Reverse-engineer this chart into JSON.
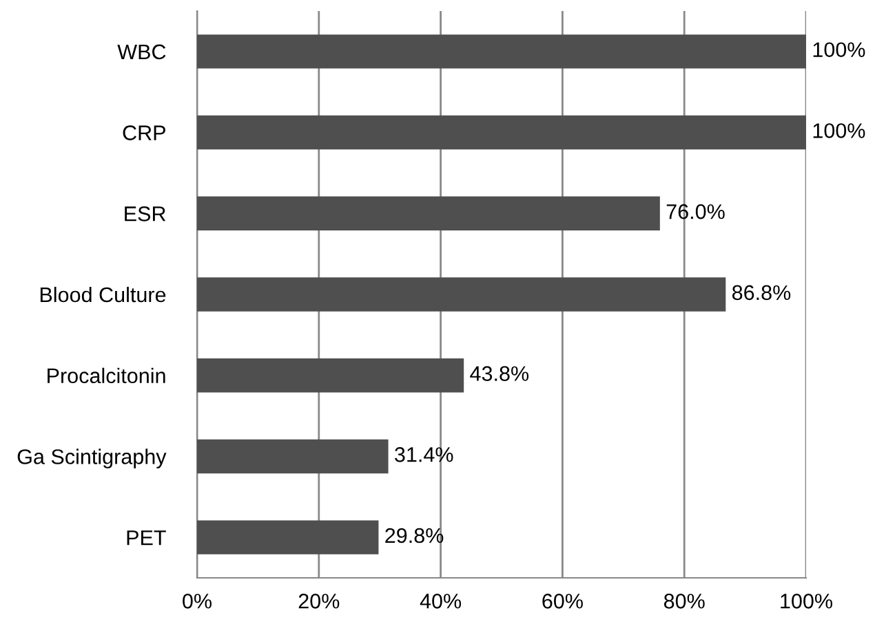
{
  "chart_data": {
    "type": "bar",
    "orientation": "horizontal",
    "categories": [
      "WBC",
      "CRP",
      "ESR",
      "Blood Culture",
      "Procalcitonin",
      "Ga Scintigraphy",
      "PET"
    ],
    "values": [
      100,
      100,
      76.0,
      86.8,
      43.8,
      31.4,
      29.8
    ],
    "value_labels": [
      "100%",
      "100%",
      "76.0%",
      "86.8%",
      "43.8%",
      "31.4%",
      "29.8%"
    ],
    "color": "#4f4f4f",
    "xlim": [
      0,
      100
    ],
    "xticks": [
      {
        "value": 0,
        "label": "0%"
      },
      {
        "value": 20,
        "label": "20%"
      },
      {
        "value": 40,
        "label": "40%"
      },
      {
        "value": 60,
        "label": "60%"
      },
      {
        "value": 80,
        "label": "80%"
      },
      {
        "value": 100,
        "label": "100%"
      }
    ],
    "grid": "x",
    "legend": false
  }
}
